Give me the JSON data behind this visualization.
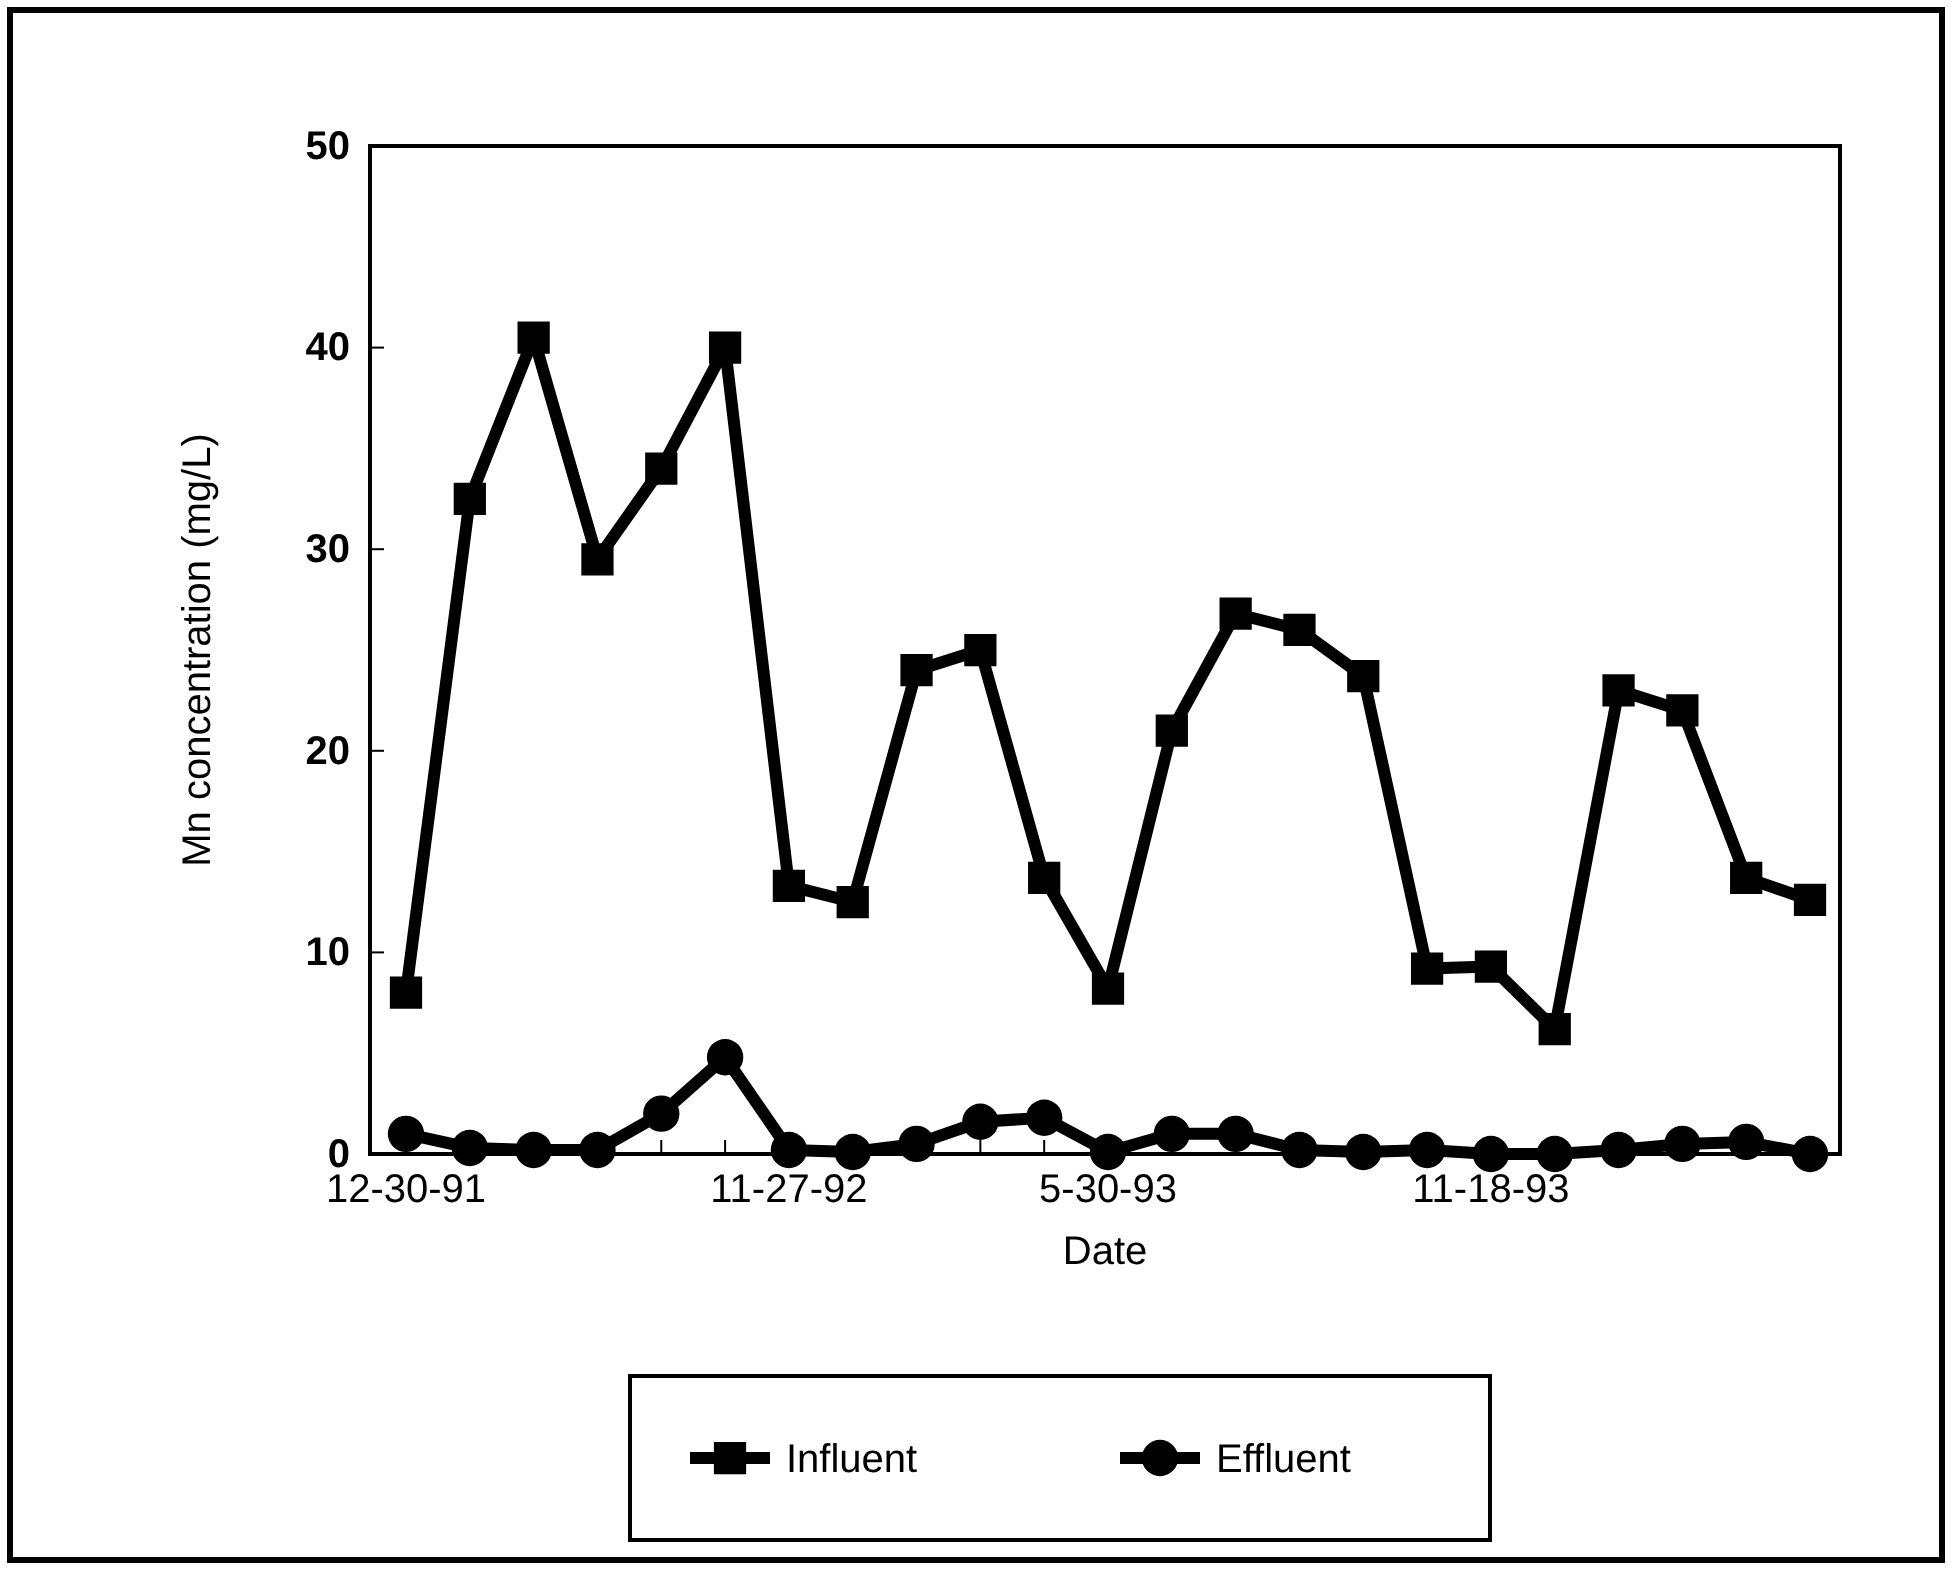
{
  "chart_data": {
    "type": "line",
    "xlabel": "Date",
    "ylabel": "Mn concentration (mg/L)",
    "categories": [
      "12-30-91",
      null,
      null,
      null,
      null,
      null,
      "11-27-92",
      null,
      null,
      null,
      null,
      "5-30-93",
      null,
      null,
      null,
      null,
      null,
      "11-18-93",
      null,
      null,
      null,
      null,
      null
    ],
    "ylim": [
      0,
      50
    ],
    "yticks": [
      0,
      10,
      20,
      30,
      40,
      50
    ],
    "grid": false,
    "legend": "bottom",
    "line_style": "solid",
    "series": [
      {
        "name": "Influent",
        "color": "#000000",
        "marker": "square",
        "values": [
          8,
          32.5,
          40.5,
          29.5,
          34,
          40,
          13.3,
          12.5,
          24,
          25,
          13.7,
          8.2,
          21,
          26.8,
          26,
          23.7,
          9.2,
          9.3,
          6.2,
          23,
          22,
          13.7,
          12.6
        ]
      },
      {
        "name": "Effluent",
        "color": "#000000",
        "marker": "circle",
        "values": [
          1,
          0.3,
          0.2,
          0.2,
          2,
          4.8,
          0.2,
          0.1,
          0.5,
          1.6,
          1.8,
          0.1,
          1,
          1,
          0.2,
          0.1,
          0.2,
          0,
          0,
          0.2,
          0.5,
          0.6,
          0
        ]
      }
    ]
  }
}
